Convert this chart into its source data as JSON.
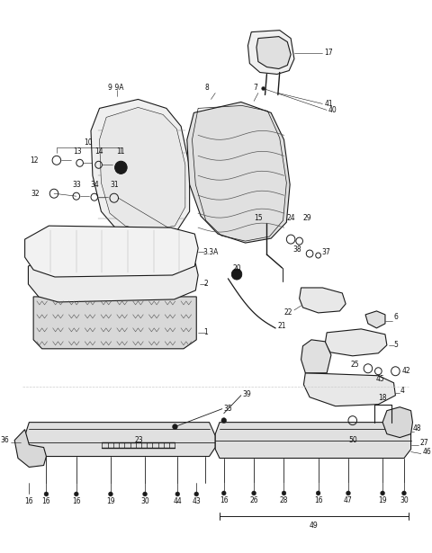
{
  "bg_color": "#ffffff",
  "line_color": "#1a1a1a",
  "lw_main": 0.8,
  "lw_thin": 0.4,
  "fontsize": 5.5,
  "fig_width": 4.8,
  "fig_height": 6.15,
  "dpi": 100
}
